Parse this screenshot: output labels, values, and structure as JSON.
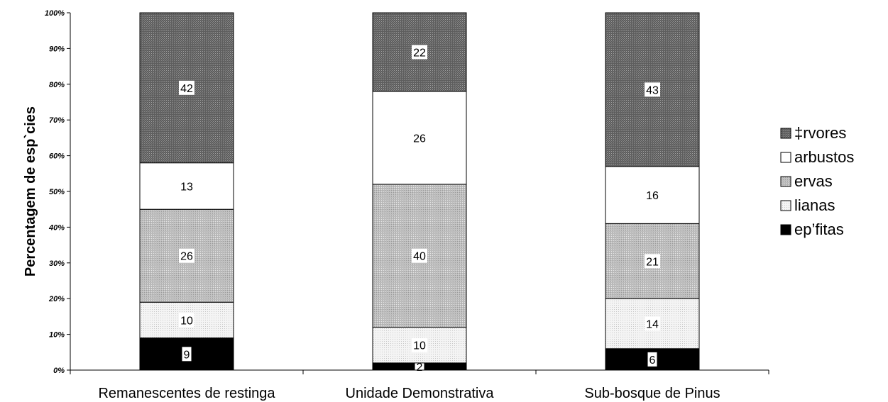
{
  "chart_data": {
    "type": "bar",
    "stacked": true,
    "percent": true,
    "ylabel": "Percentagem de esp`cies",
    "ylim": [
      0,
      100
    ],
    "yticks": [
      "0%",
      "10%",
      "20%",
      "30%",
      "40%",
      "50%",
      "60%",
      "70%",
      "80%",
      "90%",
      "100%"
    ],
    "categories": [
      "Remanescentes de restinga",
      "Unidade Demonstrativa",
      "Sub-bosque de Pinus"
    ],
    "series": [
      {
        "name": "ep’fitas",
        "values": [
          9,
          2,
          6
        ],
        "color": "#000000",
        "pattern": "solid"
      },
      {
        "name": "lianas",
        "values": [
          10,
          10,
          14
        ],
        "color": "#f2f2f2",
        "pattern": "dotted"
      },
      {
        "name": "ervas",
        "values": [
          26,
          40,
          21
        ],
        "color": "#c4c4c4",
        "pattern": "dotted"
      },
      {
        "name": "arbustos",
        "values": [
          13,
          26,
          16
        ],
        "color": "#ffffff",
        "pattern": "solid"
      },
      {
        "name": "‡rvores",
        "values": [
          42,
          22,
          43
        ],
        "color": "#6e6e6e",
        "pattern": "dotted"
      }
    ],
    "legend_order": [
      "‡rvores",
      "arbustos",
      "ervas",
      "lianas",
      "ep’fitas"
    ],
    "legend_position": "right",
    "grid": false
  }
}
